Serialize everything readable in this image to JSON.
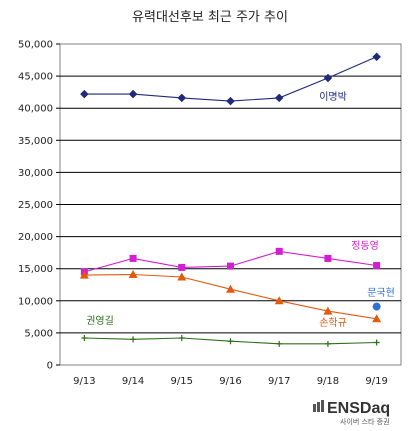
{
  "chart_data": {
    "type": "line",
    "title": "유력대선후보 최근 주가 추이",
    "categories": [
      "9/13",
      "9/14",
      "9/15",
      "9/16",
      "9/17",
      "9/18",
      "9/19"
    ],
    "ylim": [
      0,
      50000
    ],
    "yticks": [
      0,
      5000,
      10000,
      15000,
      20000,
      25000,
      30000,
      35000,
      40000,
      45000,
      50000
    ],
    "ytick_labels": [
      "0",
      "5,000",
      "10,000",
      "15,000",
      "20,000",
      "25,000",
      "30,000",
      "35,000",
      "40,000",
      "45,000",
      "50,000"
    ],
    "grid": true,
    "series": [
      {
        "name": "이명박",
        "color": "#1f2a7a",
        "marker": "diamond",
        "values": [
          42200,
          42200,
          41600,
          41100,
          41600,
          44700,
          48000
        ]
      },
      {
        "name": "정동영",
        "color": "#d11fd1",
        "marker": "square",
        "values": [
          14500,
          16600,
          15200,
          15400,
          17700,
          16600,
          15500
        ]
      },
      {
        "name": "손학규",
        "color": "#e35a0f",
        "marker": "triangle",
        "values": [
          14000,
          14100,
          13700,
          11800,
          10000,
          8400,
          7200
        ]
      },
      {
        "name": "문국현",
        "color": "#2f6fd6",
        "marker": "circle",
        "values": [
          null,
          null,
          null,
          null,
          null,
          null,
          9100
        ]
      },
      {
        "name": "권영길",
        "color": "#2c6e1b",
        "marker": "plus",
        "values": [
          4200,
          4000,
          4200,
          3700,
          3300,
          3300,
          3500
        ]
      }
    ]
  },
  "logo": {
    "text": "ENSDaq",
    "subtext": "사이버 스타 증권"
  }
}
